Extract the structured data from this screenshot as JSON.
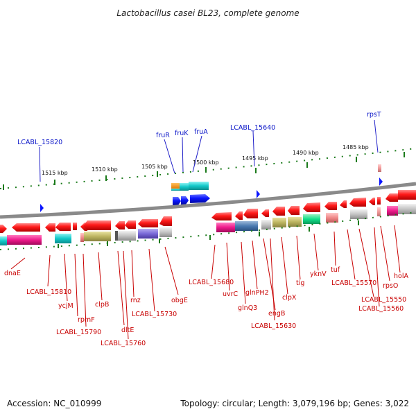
{
  "title": "Lactobacillus casei BL23, complete genome",
  "footer": {
    "accession": "Accession: NC_010999",
    "topology": "Topology: circular; Length: 3,079,196 bp; Genes: 3,022"
  },
  "scale_ticks": [
    "1515 kbp",
    "1510 kbp",
    "1505 kbp",
    "1500 kbp",
    "1495 kbp",
    "1490 kbp",
    "1485 kbp"
  ],
  "upper_labels": [
    "LCABL_15820",
    "fruR",
    "fruK",
    "fruA",
    "LCABL_15640",
    "rpsT"
  ],
  "lower_labels": [
    "dnaE",
    "LCABL_15810",
    "ycjM",
    "rpmF",
    "LCABL_15790",
    "clpB",
    "dltE",
    "LCABL_15760",
    "rnz",
    "LCABL_15730",
    "obgE",
    "LCABL_15680",
    "uvrC",
    "glnQ3",
    "glnPH2",
    "engB",
    "LCABL_15630",
    "clpX",
    "tig",
    "yknV",
    "tuf",
    "LCABL_15570",
    "rpsO",
    "LCABL_15550",
    "LCABL_15560",
    "holA"
  ],
  "colors": {
    "forward_gene": "#ff1a1a",
    "reverse_gene": "#0a15ff",
    "backbone": "#8a8a8a",
    "ticks": "#1a7a1a",
    "label_blue": "#0a15c8",
    "label_red": "#c80000"
  }
}
